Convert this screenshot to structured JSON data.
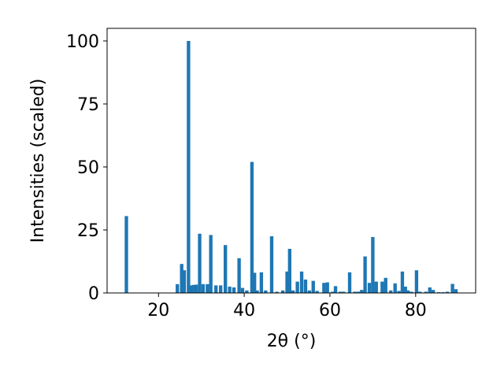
{
  "chart_data": {
    "type": "bar",
    "title": "",
    "xlabel": "2θ (°)",
    "ylabel": "Intensities (scaled)",
    "xlim": [
      8,
      94
    ],
    "ylim": [
      0,
      105
    ],
    "x_ticks": [
      20,
      40,
      60,
      80
    ],
    "y_ticks": [
      0,
      25,
      50,
      75,
      100
    ],
    "x_tick_labels": [
      "20",
      "40",
      "60",
      "80"
    ],
    "y_tick_labels": [
      "0",
      "25",
      "50",
      "75",
      "100"
    ],
    "grid": false,
    "legend": "none",
    "bar_color": "#1f77b4",
    "bar_width": 0.8,
    "x": [
      12.5,
      24.4,
      25.4,
      26.0,
      27.0,
      27.6,
      28.2,
      28.8,
      29.6,
      30.4,
      31.4,
      32.2,
      33.4,
      34.5,
      35.6,
      36.6,
      37.6,
      38.8,
      39.6,
      40.6,
      41.8,
      42.4,
      43.0,
      44.0,
      45.0,
      46.4,
      47.6,
      49.0,
      50.0,
      50.6,
      51.4,
      52.4,
      53.4,
      54.3,
      55.2,
      56.1,
      57.0,
      58.6,
      59.4,
      60.6,
      61.3,
      62.4,
      63.2,
      64.6,
      65.8,
      66.6,
      67.4,
      68.2,
      69.2,
      70.0,
      70.8,
      72.2,
      73.0,
      74.2,
      75.2,
      76.1,
      76.9,
      77.6,
      78.2,
      79.0,
      80.2,
      81.0,
      82.4,
      83.3,
      84.1,
      85.4,
      86.4,
      87.4,
      88.6,
      89.4
    ],
    "values": [
      30.5,
      3.5,
      11.5,
      9.0,
      100.0,
      3.0,
      3.2,
      3.3,
      23.5,
      3.5,
      3.5,
      23.0,
      3.0,
      3.0,
      19.0,
      2.5,
      2.2,
      13.8,
      2.0,
      1.0,
      52.0,
      8.0,
      1.0,
      8.2,
      1.0,
      22.5,
      0.5,
      1.0,
      8.5,
      17.5,
      1.0,
      4.5,
      8.5,
      5.3,
      1.0,
      4.8,
      0.8,
      4.0,
      4.2,
      0.5,
      2.7,
      0.5,
      0.5,
      8.2,
      0.5,
      0.5,
      1.2,
      14.5,
      4.0,
      22.2,
      4.5,
      4.5,
      6.0,
      1.0,
      3.8,
      0.8,
      8.5,
      2.5,
      1.0,
      0.5,
      9.0,
      0.5,
      0.5,
      2.2,
      1.2,
      0.3,
      0.3,
      0.5,
      3.6,
      1.5
    ]
  }
}
